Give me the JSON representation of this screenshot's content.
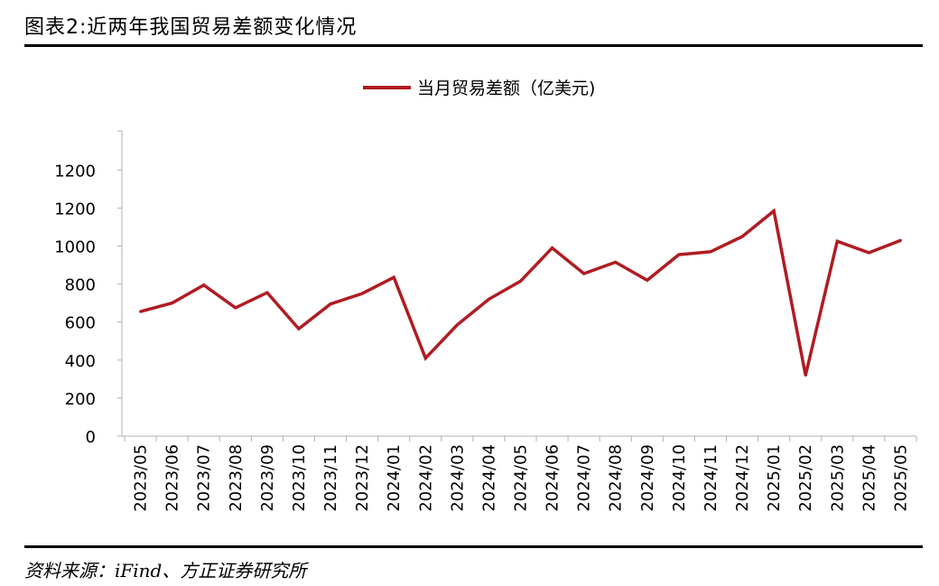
{
  "figure": {
    "title": "图表2:近两年我国贸易差额变化情况",
    "source": "资料来源：iFind、方正证券研究所"
  },
  "chart_data": {
    "type": "line",
    "title": "",
    "xlabel": "",
    "ylabel": "",
    "categories": [
      "2023/05",
      "2023/06",
      "2023/07",
      "2023/08",
      "2023/09",
      "2023/10",
      "2023/11",
      "2023/12",
      "2024/01",
      "2024/02",
      "2024/03",
      "2024/04",
      "2024/05",
      "2024/06",
      "2024/07",
      "2024/08",
      "2024/09",
      "2024/10",
      "2024/11",
      "2024/12",
      "2025/01",
      "2025/02",
      "2025/03",
      "2025/04",
      "2025/05"
    ],
    "series": [
      {
        "name": "当月贸易差额（亿美元)",
        "color": "#b01c22",
        "values": [
          655,
          700,
          795,
          675,
          755,
          565,
          695,
          750,
          835,
          410,
          585,
          720,
          815,
          990,
          855,
          915,
          820,
          955,
          970,
          1050,
          1185,
          320,
          1025,
          965,
          1030
        ]
      }
    ],
    "y_tick_labels": [
      "0",
      "200",
      "400",
      "600",
      "800",
      "1000",
      "1200",
      "1200"
    ],
    "ylim": [
      0,
      1600
    ],
    "grid": false,
    "legend_position": "top-center"
  }
}
